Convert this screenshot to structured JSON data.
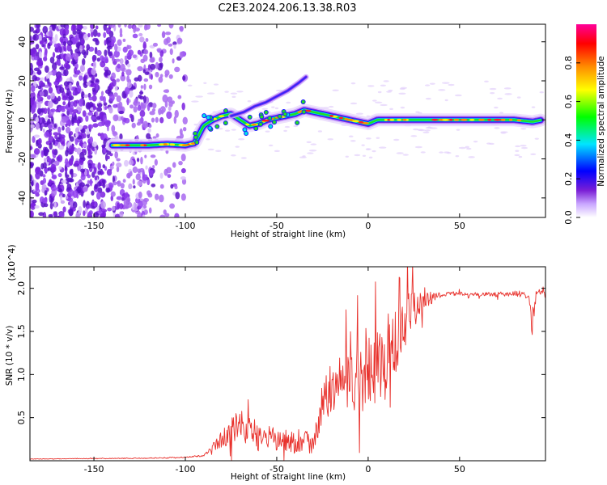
{
  "title": "C2E3.2024.206.13.38.R03",
  "colors": {
    "snr_line": "#e8312c",
    "axis": "#000000",
    "spec_light": "#d9c2f7",
    "spec_violet": "#8a2be2",
    "spec_blue": "#1a1aff",
    "spec_cyan": "#00e5e5",
    "spec_green": "#22dd22",
    "spec_yellow": "#ffee00",
    "spec_red": "#ff2020"
  },
  "chart_data": [
    {
      "type": "heatmap",
      "xlabel": "Height of straight line (km)",
      "ylabel": "Frequency (Hz)",
      "xlim": [
        -185,
        97
      ],
      "ylim": [
        -50,
        49
      ],
      "xticks": [
        -150,
        -100,
        -50,
        0,
        50
      ],
      "yticks": [
        -40,
        -20,
        0,
        20,
        40
      ],
      "grid": false,
      "colorbar": {
        "label": "Normalized spectral amplitude",
        "range": [
          0,
          1
        ],
        "ticks": [
          "0.0",
          "0.2",
          "0.4",
          "0.6",
          "0.8"
        ],
        "colormap": [
          "#ffffff",
          "#c9a6ff",
          "#7a1fd6",
          "#0000ff",
          "#00e5ff",
          "#00ff00",
          "#ffff00",
          "#ff8c00",
          "#ff0000",
          "#ff0099"
        ]
      },
      "ridge": {
        "x": [
          -140,
          -130,
          -120,
          -110,
          -100,
          -95,
          -90,
          -85,
          -80,
          -75,
          -70,
          -65,
          -60,
          -55,
          -50,
          -45,
          -40,
          -35,
          -30,
          -25,
          -20,
          -15,
          -10,
          -5,
          0,
          5,
          10,
          20,
          30,
          40,
          50,
          60,
          70,
          80,
          90,
          95
        ],
        "y": [
          -13,
          -13,
          -13,
          -12.5,
          -13,
          -12,
          -3,
          0,
          2,
          3,
          0,
          -3,
          -2,
          0,
          1,
          2,
          3,
          5,
          4,
          3,
          2,
          1,
          0,
          -1,
          -2,
          0,
          0,
          0,
          0,
          0,
          0,
          0,
          0,
          0,
          -1,
          0
        ]
      },
      "secondary_streak": {
        "x": [
          -75,
          -68,
          -62,
          -56,
          -50,
          -44,
          -38,
          -34
        ],
        "y": [
          2,
          4,
          7,
          9,
          12,
          15,
          19,
          22
        ]
      }
    },
    {
      "type": "line",
      "xlabel": "Height of straight line (km)",
      "ylabel": "SNR (10 * v/v)",
      "y_multiplier": "(x10^4)",
      "xlim": [
        -185,
        97
      ],
      "ylim": [
        0,
        22500
      ],
      "xticks": [
        -150,
        -100,
        -50,
        0,
        50
      ],
      "yticks": [
        {
          "value": 5000,
          "label": "0.5"
        },
        {
          "value": 10000,
          "label": "1.0"
        },
        {
          "value": 15000,
          "label": "1.5"
        },
        {
          "value": 20000,
          "label": "2.0"
        }
      ],
      "grid": false,
      "envelope": {
        "x": [
          -185,
          -150,
          -120,
          -100,
          -90,
          -85,
          -80,
          -75,
          -70,
          -65,
          -60,
          -55,
          -50,
          -45,
          -40,
          -35,
          -30,
          -27,
          -25,
          -20,
          -15,
          -10,
          -5,
          0,
          5,
          10,
          15,
          20,
          25,
          30,
          40,
          50,
          60,
          70,
          80,
          88,
          90,
          92,
          95,
          97
        ],
        "y": [
          200,
          250,
          300,
          400,
          600,
          1500,
          2500,
          3500,
          4000,
          3500,
          3000,
          2500,
          2500,
          2200,
          2200,
          2500,
          2300,
          4000,
          7000,
          8000,
          8500,
          9000,
          9500,
          10000,
          11000,
          12000,
          13500,
          15500,
          17500,
          18500,
          19300,
          19400,
          19300,
          19300,
          19400,
          19200,
          16000,
          19500,
          19400,
          19200
        ],
        "noise_amplitude": [
          30,
          40,
          50,
          60,
          100,
          400,
          1000,
          1500,
          2000,
          1800,
          1800,
          1600,
          1500,
          1400,
          1400,
          1500,
          1500,
          1800,
          2500,
          2800,
          3200,
          3500,
          3800,
          4000,
          4500,
          5000,
          4200,
          3500,
          2200,
          1200,
          300,
          200,
          200,
          250,
          300,
          400,
          2500,
          600,
          400,
          300
        ]
      }
    }
  ]
}
